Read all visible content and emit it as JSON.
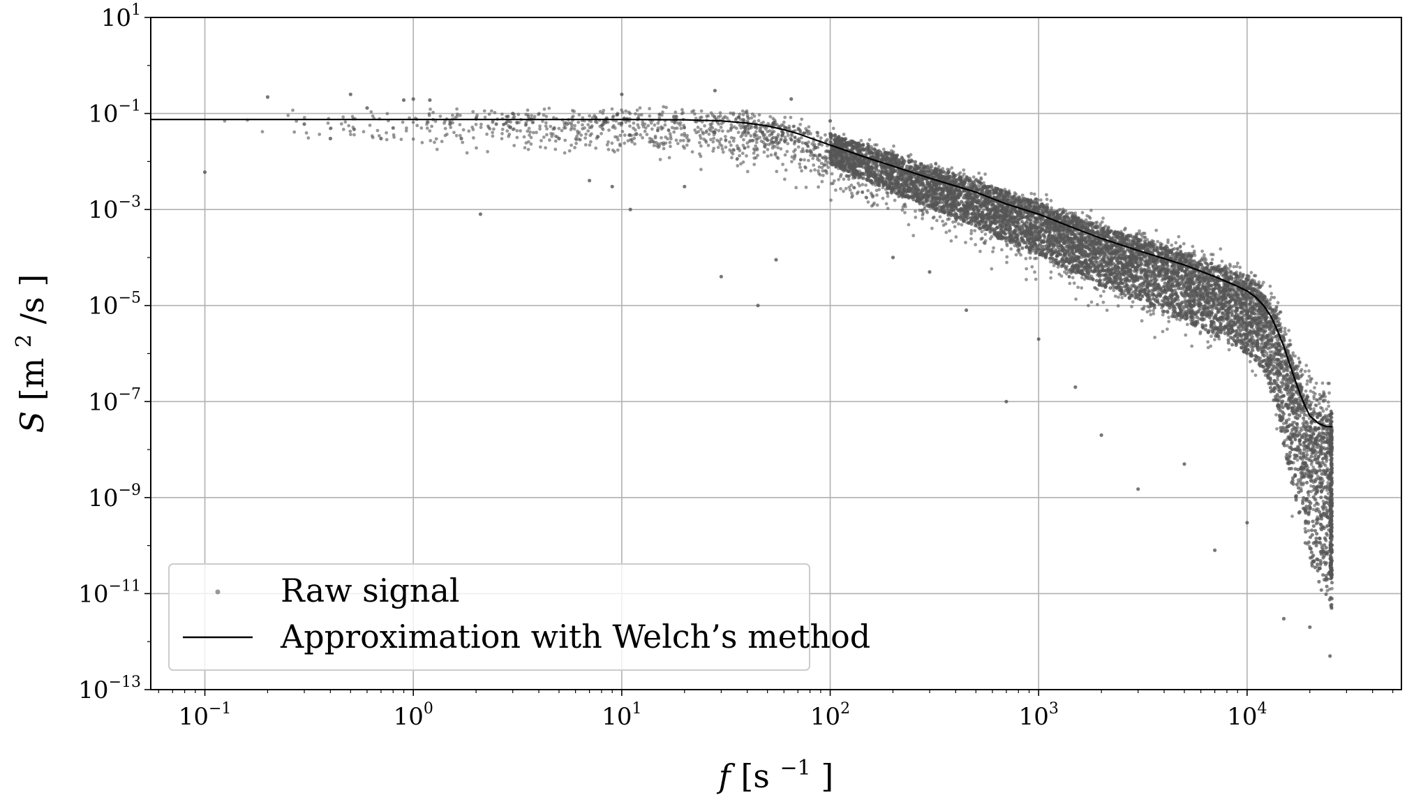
{
  "chart_data": {
    "type": "scatter",
    "xscale": "log",
    "yscale": "log",
    "xlim": [
      0.055,
      55000
    ],
    "ylim": [
      1e-13,
      10
    ],
    "grid": true,
    "legend_placement": "bottom-left",
    "xlabel": {
      "symbol": "f",
      "unit_base": "s",
      "unit_exp": "−1"
    },
    "ylabel": {
      "symbol": "S",
      "unit_base": "m",
      "unit_exp": "2",
      "unit_rest": "/s"
    },
    "x_ticks": [
      {
        "value": 0.1,
        "base": "10",
        "exp": "−1"
      },
      {
        "value": 1,
        "base": "10",
        "exp": "0"
      },
      {
        "value": 10,
        "base": "10",
        "exp": "1"
      },
      {
        "value": 100,
        "base": "10",
        "exp": "2"
      },
      {
        "value": 1000,
        "base": "10",
        "exp": "3"
      },
      {
        "value": 10000,
        "base": "10",
        "exp": "4"
      }
    ],
    "y_ticks": [
      {
        "value": 10,
        "base": "10",
        "exp": "1"
      },
      {
        "value": 0.1,
        "base": "10",
        "exp": "−1"
      },
      {
        "value": 0.001,
        "base": "10",
        "exp": "−3"
      },
      {
        "value": 1e-05,
        "base": "10",
        "exp": "−5"
      },
      {
        "value": 1e-07,
        "base": "10",
        "exp": "−7"
      },
      {
        "value": 1e-09,
        "base": "10",
        "exp": "−9"
      },
      {
        "value": 1e-11,
        "base": "10",
        "exp": "−11"
      },
      {
        "value": 1e-13,
        "base": "10",
        "exp": "−13"
      }
    ],
    "series": [
      {
        "name": "Raw signal",
        "kind": "scatter",
        "color": "#555555",
        "opacity": 0.6,
        "sample_points": [
          [
            0.1,
            0.006
          ],
          [
            0.2,
            0.22
          ],
          [
            0.3,
            0.06
          ],
          [
            0.4,
            0.03
          ],
          [
            0.5,
            0.25
          ],
          [
            0.6,
            0.13
          ],
          [
            0.7,
            0.03
          ],
          [
            0.8,
            0.05
          ],
          [
            0.9,
            0.19
          ],
          [
            1.0,
            0.2
          ],
          [
            1.2,
            0.19
          ],
          [
            1.5,
            0.06
          ],
          [
            1.7,
            0.03
          ],
          [
            2.1,
            0.0008
          ],
          [
            2.5,
            0.06
          ],
          [
            3.0,
            0.1
          ],
          [
            5.0,
            0.03
          ],
          [
            7.0,
            0.004
          ],
          [
            9.0,
            0.003
          ],
          [
            10.0,
            0.25
          ],
          [
            11.0,
            0.001
          ],
          [
            12.0,
            0.08
          ],
          [
            20.0,
            0.003
          ],
          [
            28.0,
            0.3
          ],
          [
            30.0,
            4e-05
          ],
          [
            45.0,
            1e-05
          ],
          [
            55.0,
            9e-05
          ],
          [
            65.0,
            0.2
          ],
          [
            100.0,
            0.07
          ],
          [
            120.0,
            0.005
          ],
          [
            200.0,
            0.0001
          ],
          [
            300.0,
            5e-05
          ],
          [
            450.0,
            8e-06
          ],
          [
            700.0,
            1e-07
          ],
          [
            1000.0,
            2e-06
          ],
          [
            1500.0,
            2e-07
          ],
          [
            2000.0,
            2e-08
          ],
          [
            3000.0,
            1.5e-09
          ],
          [
            5000.0,
            5e-09
          ],
          [
            7000.0,
            8e-11
          ],
          [
            10000.0,
            3e-10
          ],
          [
            15000.0,
            3e-12
          ],
          [
            20000.0,
            2e-12
          ],
          [
            25000.0,
            5e-13
          ]
        ]
      },
      {
        "name": "Approximation with Welch’s method",
        "kind": "line",
        "color": "#000000",
        "x": [
          0.055,
          1,
          10,
          20,
          30,
          40,
          50,
          60,
          70,
          80,
          100,
          150,
          200,
          300,
          500,
          700,
          1000,
          1500,
          2000,
          3000,
          5000,
          7000,
          9000,
          10000,
          11000,
          12000,
          13000,
          14000,
          15000,
          16000,
          17000,
          18000,
          19000,
          20000,
          22000,
          24000,
          25600
        ],
        "y": [
          0.075,
          0.075,
          0.075,
          0.074,
          0.07,
          0.063,
          0.055,
          0.046,
          0.038,
          0.031,
          0.022,
          0.012,
          0.008,
          0.0045,
          0.0023,
          0.0013,
          0.0008,
          0.0004,
          0.00025,
          0.00014,
          7e-05,
          4e-05,
          2.5e-05,
          2e-05,
          1.5e-05,
          1e-05,
          6e-06,
          3e-06,
          1.4e-06,
          6e-07,
          2.8e-07,
          1.4e-07,
          8e-08,
          5e-08,
          3.5e-08,
          3e-08,
          3e-08
        ]
      }
    ]
  }
}
